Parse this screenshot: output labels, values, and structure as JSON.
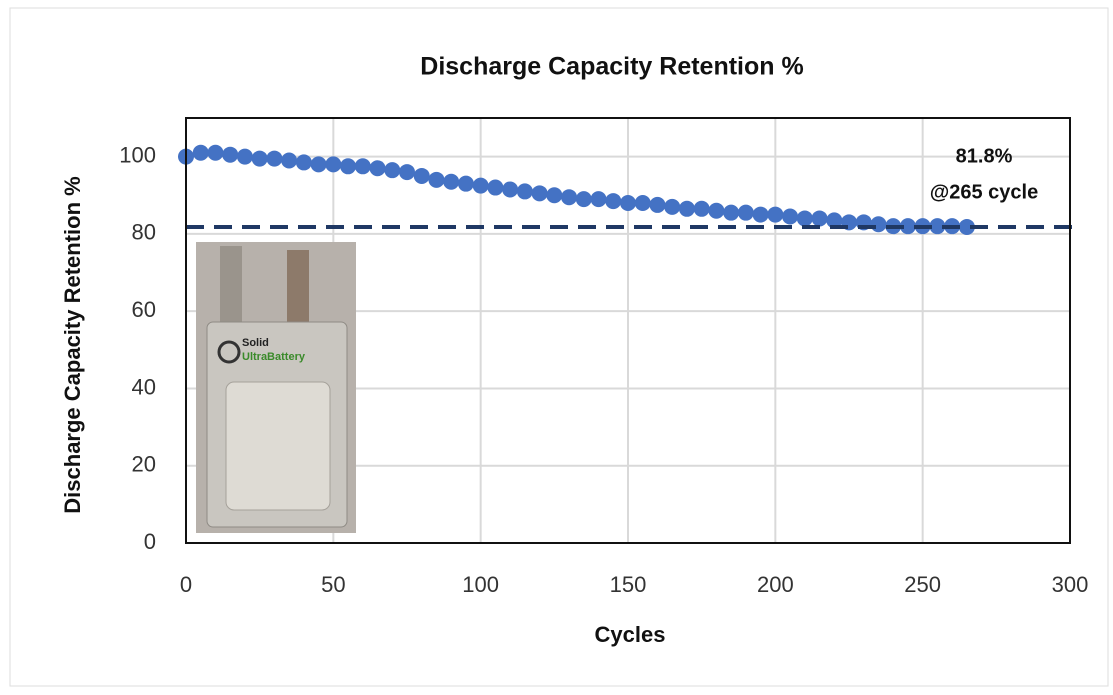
{
  "chart_data": {
    "type": "scatter",
    "title": "Discharge Capacity Retention %",
    "x_label": "Cycles",
    "y_label": "Discharge Capacity Retention %",
    "x": [
      0,
      5,
      10,
      15,
      20,
      25,
      30,
      35,
      40,
      45,
      50,
      55,
      60,
      65,
      70,
      75,
      80,
      85,
      90,
      95,
      100,
      105,
      110,
      115,
      120,
      125,
      130,
      135,
      140,
      145,
      150,
      155,
      160,
      165,
      170,
      175,
      180,
      185,
      190,
      195,
      200,
      205,
      210,
      215,
      220,
      225,
      230,
      235,
      240,
      245,
      250,
      255,
      260,
      265
    ],
    "values": [
      100,
      101,
      101,
      100.5,
      100,
      99.5,
      99.5,
      99,
      98.5,
      98,
      98,
      97.5,
      97.5,
      97,
      96.5,
      96,
      95,
      94,
      93.5,
      93,
      92.5,
      92,
      91.5,
      91,
      90.5,
      90,
      89.5,
      89,
      89,
      88.5,
      88,
      88,
      87.5,
      87,
      86.5,
      86.5,
      86,
      85.5,
      85.5,
      85,
      85,
      84.5,
      84,
      84,
      83.5,
      83,
      83,
      82.5,
      82,
      82,
      82,
      82,
      82,
      81.8
    ],
    "color": "#4472c4",
    "xlim": [
      0,
      300
    ],
    "xticks": [
      0,
      50,
      100,
      150,
      200,
      250,
      300
    ],
    "ylim": [
      0,
      110
    ],
    "yticks": [
      0,
      20,
      40,
      60,
      80,
      100
    ],
    "grid": true,
    "reference_line": 81.8,
    "annotation": [
      "81.8%",
      "@265 cycle"
    ],
    "inset_labels": [
      "Solid",
      "UltraBattery"
    ]
  }
}
